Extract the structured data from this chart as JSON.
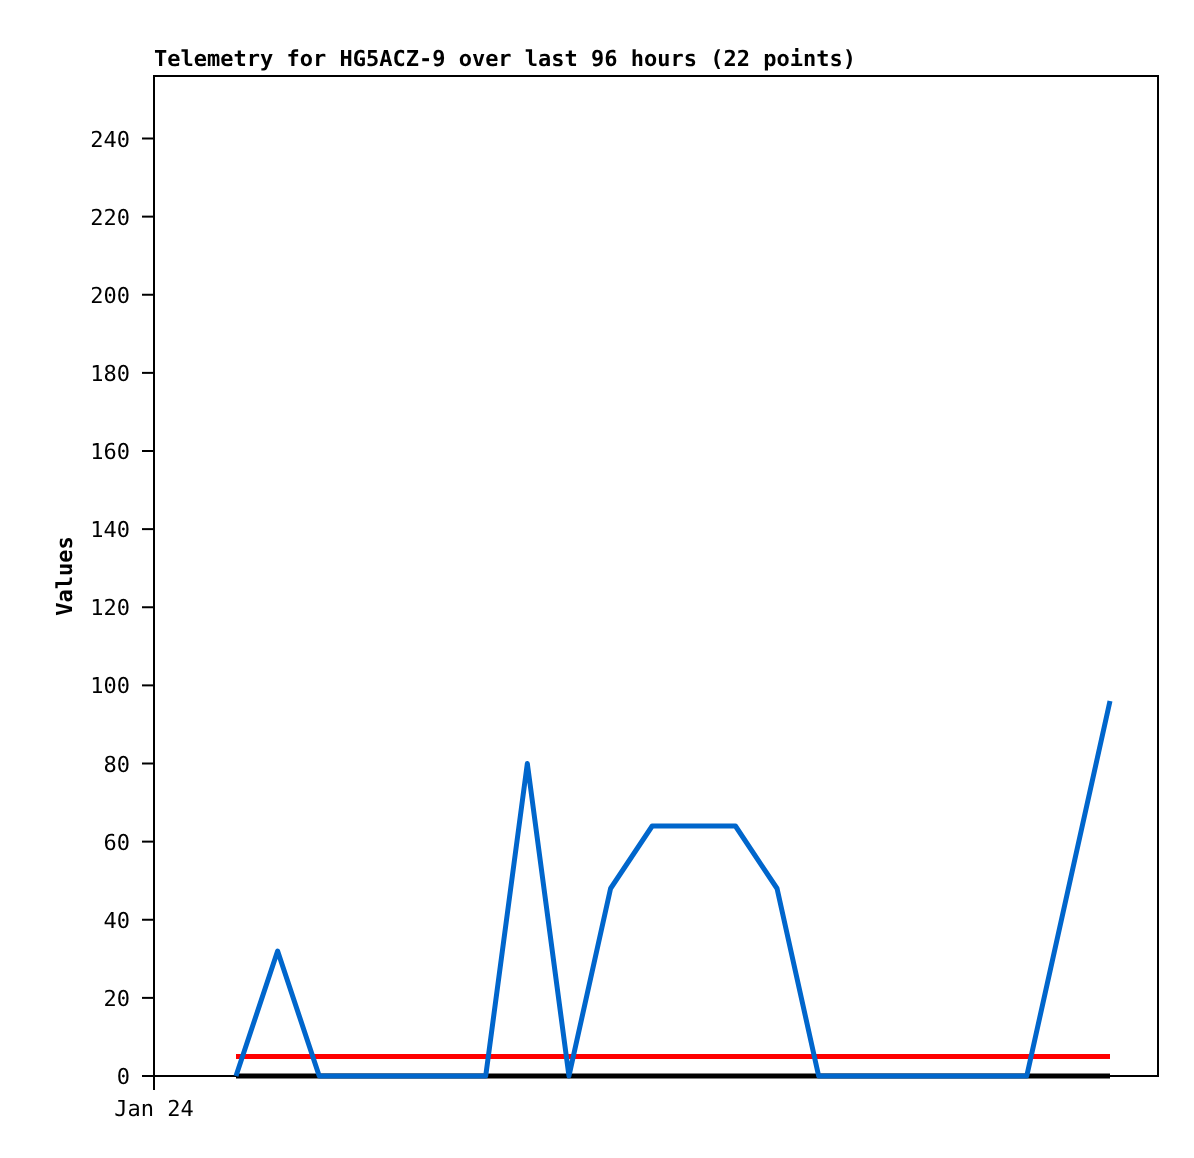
{
  "chart_data": {
    "type": "line",
    "title": "Telemetry for HG5ACZ-9 over last 96 hours (22 points)",
    "ylabel": "Values",
    "categories": [
      null,
      null,
      null,
      null,
      null,
      null,
      null,
      null,
      null,
      null,
      null,
      null,
      null,
      null,
      null,
      null,
      null,
      null,
      null,
      null,
      null,
      null
    ],
    "annotations": [
      "Jan 24"
    ],
    "ylim": [
      0,
      256
    ],
    "yticks": [
      0,
      20,
      40,
      60,
      80,
      100,
      120,
      140,
      160,
      180,
      200,
      220,
      240
    ],
    "series": [
      {
        "color": "#000000",
        "values": [
          0,
          0,
          0,
          0,
          0,
          0,
          0,
          0,
          0,
          0,
          0,
          0,
          0,
          0,
          0,
          0,
          0,
          0,
          0,
          0,
          0,
          0
        ]
      },
      {
        "color": "#ff0000",
        "values": [
          5,
          5,
          5,
          5,
          5,
          5,
          5,
          5,
          5,
          5,
          5,
          5,
          5,
          5,
          5,
          5,
          5,
          5,
          5,
          5,
          5,
          5
        ]
      },
      {
        "color": "#0066cc",
        "values": [
          0,
          32,
          0,
          0,
          0,
          0,
          0,
          80,
          0,
          48,
          64,
          64,
          64,
          48,
          0,
          0,
          0,
          0,
          0,
          0,
          48,
          96
        ]
      }
    ],
    "grid": false,
    "line_style": "solid",
    "marker": "none"
  }
}
